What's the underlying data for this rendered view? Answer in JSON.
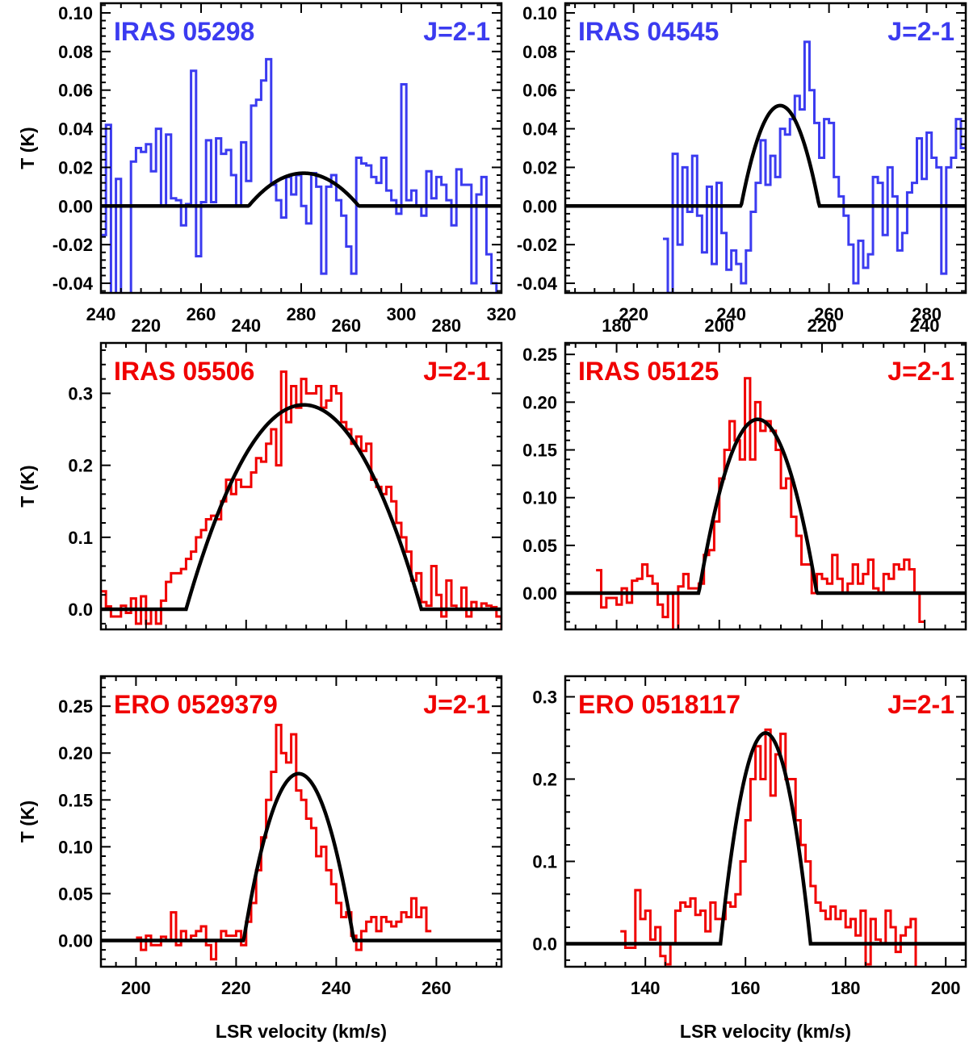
{
  "chart_data": [
    {
      "type": "line",
      "title": "IRAS 05298",
      "transition": "J=2-1",
      "color": "#3b3bf0",
      "xlabel": "",
      "ylabel": "T (K)",
      "xlim": [
        240,
        320
      ],
      "ylim": [
        -0.045,
        0.105
      ],
      "xticks": [
        240,
        260,
        280,
        300,
        320
      ],
      "yticks": [
        -0.04,
        -0.02,
        0.0,
        0.02,
        0.04,
        0.06,
        0.08,
        0.1
      ],
      "ytick_decimals": 2,
      "xtick_position": "bottom",
      "fit": {
        "center": 280.5,
        "halfwidth": 11,
        "peak": 0.017
      },
      "spectrum_step": 1,
      "spectrum_start": 240,
      "spectrum": [
        -0.015,
        0.042,
        -0.06,
        0.014,
        -0.06,
        -0.06,
        0.023,
        0.03,
        0.028,
        0.032,
        0.018,
        0.04,
        0.0,
        0.037,
        0.004,
        0.003,
        -0.01,
        0.001,
        0.07,
        -0.026,
        0.002,
        0.034,
        0.002,
        0.035,
        0.027,
        0.029,
        0.016,
        0.0,
        0.033,
        0.013,
        0.052,
        0.055,
        0.065,
        0.076,
        0.011,
        0.003,
        -0.006,
        0.015,
        0.006,
        0.016,
        0.0,
        -0.009,
        0.017,
        0.01,
        -0.035,
        0.01,
        0.016,
        0.003,
        -0.005,
        -0.021,
        -0.035,
        0.025,
        0.022,
        0.021,
        0.015,
        0.012,
        0.025,
        0.008,
        0.003,
        -0.004,
        0.063,
        0.003,
        0.008,
        0.0,
        -0.005,
        0.018,
        0.004,
        0.015,
        0.011,
        0.003,
        -0.01,
        0.019,
        0.011,
        0.011,
        -0.04,
        0.006,
        0.015,
        -0.025,
        -0.04,
        -0.05
      ]
    },
    {
      "type": "line",
      "title": "IRAS 04545",
      "transition": "J=2-1",
      "color": "#3b3bf0",
      "xlabel": "",
      "ylabel": "",
      "xlim": [
        206,
        288
      ],
      "ylim": [
        -0.045,
        0.105
      ],
      "xticks": [
        220,
        240,
        260,
        280
      ],
      "yticks": [
        -0.04,
        -0.02,
        0.0,
        0.02,
        0.04,
        0.06,
        0.08,
        0.1
      ],
      "ytick_decimals": 2,
      "xtick_position": "bottom",
      "fit": {
        "center": 250,
        "halfwidth": 8,
        "peak": 0.052
      },
      "spectrum_step": 1,
      "spectrum_start": 226,
      "spectrum": [
        -0.017,
        -0.045,
        0.027,
        -0.02,
        0.02,
        -0.003,
        0.026,
        -0.005,
        -0.024,
        0.01,
        -0.03,
        0.012,
        -0.014,
        -0.033,
        -0.023,
        -0.03,
        -0.04,
        -0.023,
        -0.003,
        0.012,
        0.034,
        0.011,
        0.026,
        0.015,
        0.04,
        0.037,
        0.045,
        0.057,
        0.05,
        0.085,
        0.06,
        0.043,
        0.025,
        0.045,
        0.043,
        0.015,
        0.005,
        -0.005,
        -0.02,
        -0.04,
        -0.018,
        -0.032,
        -0.025,
        0.015,
        0.012,
        -0.015,
        0.02,
        0.005,
        -0.023,
        -0.014,
        0.007,
        0.012,
        0.035,
        0.014,
        0.038,
        0.025,
        0.02,
        -0.035,
        0.02,
        0.025,
        0.045,
        0.03,
        0.037,
        0.055,
        0.012,
        0.005
      ]
    },
    {
      "type": "line",
      "title": "IRAS 05506",
      "transition": "J=2-1",
      "color": "#f00000",
      "xlabel": "",
      "ylabel": "T (K)",
      "xlim": [
        211,
        291
      ],
      "ylim": [
        -0.028,
        0.37
      ],
      "xticks": [
        220,
        240,
        260,
        280
      ],
      "yticks": [
        0.0,
        0.1,
        0.2,
        0.3
      ],
      "ytick_decimals": 1,
      "xtick_position": "top",
      "fit": {
        "center": 251.5,
        "halfwidth": 23.5,
        "peak": 0.284
      },
      "spectrum_step": 1,
      "spectrum_start": 211,
      "spectrum": [
        0.025,
        0.004,
        -0.01,
        -0.01,
        0.005,
        -0.005,
        0.015,
        -0.02,
        0.018,
        -0.02,
        0.0,
        -0.02,
        0.012,
        0.038,
        0.05,
        0.05,
        0.056,
        0.07,
        0.08,
        0.1,
        0.11,
        0.125,
        0.13,
        0.125,
        0.15,
        0.18,
        0.16,
        0.18,
        0.17,
        0.17,
        0.19,
        0.21,
        0.205,
        0.23,
        0.25,
        0.2,
        0.33,
        0.26,
        0.31,
        0.28,
        0.32,
        0.3,
        0.3,
        0.31,
        0.28,
        0.29,
        0.31,
        0.3,
        0.26,
        0.25,
        0.23,
        0.24,
        0.22,
        0.23,
        0.18,
        0.17,
        0.16,
        0.17,
        0.15,
        0.12,
        0.1,
        0.08,
        0.04,
        0.05,
        0.01,
        0.005,
        0.06,
        0.02,
        -0.01,
        0.04,
        0.005,
        0.0,
        0.03,
        -0.01,
        0.01,
        0.0,
        0.008,
        0.005,
        0.003,
        -0.01,
        -0.03
      ]
    },
    {
      "type": "line",
      "title": "IRAS 05125",
      "transition": "J=2-1",
      "color": "#f00000",
      "xlabel": "",
      "ylabel": "",
      "xlim": [
        170,
        248
      ],
      "ylim": [
        -0.038,
        0.262
      ],
      "xticks": [
        180,
        200,
        220,
        240
      ],
      "yticks": [
        0.0,
        0.05,
        0.1,
        0.15,
        0.2,
        0.25
      ],
      "ytick_decimals": 2,
      "xtick_position": "top",
      "fit": {
        "center": 207.5,
        "halfwidth": 11.5,
        "peak": 0.182
      },
      "spectrum_step": 1,
      "spectrum_start": 176,
      "spectrum": [
        0.024,
        -0.015,
        -0.005,
        -0.005,
        -0.012,
        0.005,
        -0.01,
        0.013,
        0.015,
        0.03,
        0.018,
        0.01,
        -0.012,
        -0.025,
        0.0,
        -0.04,
        0.007,
        0.02,
        0.005,
        0.005,
        0.01,
        0.04,
        0.045,
        0.075,
        0.12,
        0.15,
        0.18,
        0.16,
        0.14,
        0.225,
        0.14,
        0.2,
        0.17,
        0.18,
        0.17,
        0.15,
        0.11,
        0.12,
        0.08,
        0.06,
        0.03,
        0.03,
        0.0,
        0.02,
        0.015,
        0.01,
        0.04,
        0.015,
        0.0,
        0.01,
        0.03,
        0.01,
        0.02,
        0.035,
        0.005,
        0.0,
        0.02,
        0.015,
        0.03,
        0.025,
        0.035,
        0.025,
        0.0,
        -0.03
      ]
    },
    {
      "type": "line",
      "title": "ERO 0529379",
      "transition": "J=2-1",
      "color": "#f00000",
      "xlabel": "LSR velocity (km/s)",
      "ylabel": "T (K)",
      "xlim": [
        193,
        273
      ],
      "ylim": [
        -0.028,
        0.282
      ],
      "xticks": [
        200,
        220,
        240,
        260
      ],
      "yticks": [
        0.0,
        0.05,
        0.1,
        0.15,
        0.2,
        0.25
      ],
      "ytick_decimals": 2,
      "xtick_position": "bottom",
      "fit": {
        "center": 232.5,
        "halfwidth": 11,
        "peak": 0.178
      },
      "spectrum_step": 1,
      "spectrum_start": 200,
      "spectrum": [
        0.003,
        -0.01,
        0.005,
        -0.005,
        -0.005,
        0.004,
        0.0,
        0.03,
        -0.005,
        0.01,
        0.0,
        0.005,
        0.01,
        0.015,
        -0.005,
        -0.02,
        0.0,
        0.01,
        0.005,
        0.005,
        0.01,
        -0.005,
        0.02,
        0.04,
        0.075,
        0.11,
        0.15,
        0.18,
        0.23,
        0.2,
        0.19,
        0.22,
        0.16,
        0.15,
        0.13,
        0.12,
        0.09,
        0.1,
        0.075,
        0.06,
        0.04,
        0.025,
        0.03,
        0.005,
        -0.01,
        0.01,
        0.02,
        0.025,
        0.01,
        0.025,
        0.02,
        0.015,
        0.02,
        0.03,
        0.025,
        0.045,
        0.025,
        0.035,
        0.01
      ]
    },
    {
      "type": "line",
      "title": "ERO 0518117",
      "transition": "J=2-1",
      "color": "#f00000",
      "xlabel": "LSR velocity (km/s)",
      "ylabel": "",
      "xlim": [
        124,
        204
      ],
      "ylim": [
        -0.028,
        0.325
      ],
      "xticks": [
        140,
        160,
        180,
        200
      ],
      "yticks": [
        0.0,
        0.1,
        0.2,
        0.3
      ],
      "ytick_decimals": 1,
      "xtick_position": "bottom",
      "fit": {
        "center": 164,
        "halfwidth": 9,
        "peak": 0.256
      },
      "spectrum_step": 1,
      "spectrum_start": 135,
      "spectrum": [
        0.015,
        -0.005,
        -0.005,
        0.065,
        0.03,
        0.04,
        0.005,
        0.02,
        -0.015,
        -0.025,
        0.0,
        0.04,
        0.05,
        0.045,
        0.055,
        0.035,
        0.04,
        0.015,
        0.05,
        0.03,
        0.03,
        0.05,
        0.045,
        0.06,
        0.1,
        0.15,
        0.2,
        0.24,
        0.2,
        0.26,
        0.18,
        0.23,
        0.255,
        0.2,
        0.2,
        0.15,
        0.12,
        0.1,
        0.07,
        0.05,
        0.04,
        0.03,
        0.045,
        0.03,
        0.04,
        0.02,
        0.03,
        0.01,
        0.04,
        -0.025,
        0.03,
        0.005,
        0.0,
        0.04,
        0.02,
        -0.01,
        0.01,
        0.02,
        0.03,
        -0.035
      ]
    }
  ]
}
